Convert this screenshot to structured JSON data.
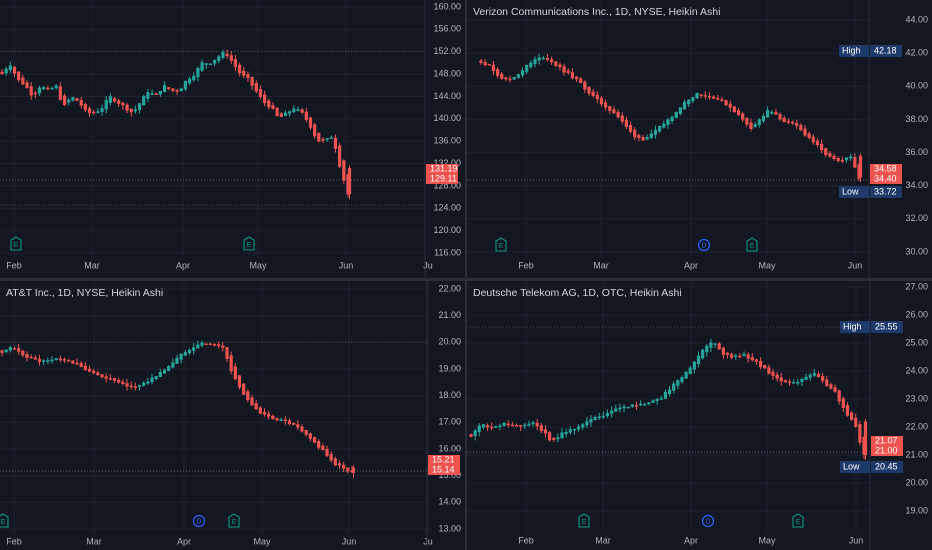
{
  "colors": {
    "background": "#131722",
    "grid": "#1e222d",
    "separator": "#2a2e39",
    "up": "#26a69a",
    "down": "#ef5350",
    "axis_text": "#b2b5be",
    "title_text": "#d1d4dc",
    "hl_box": "#1e3a6b",
    "event_earnings": "#089981",
    "event_dividend": "#2962ff"
  },
  "chart_data": [
    {
      "type": "candlestick",
      "title": "",
      "ylim": [
        116,
        160
      ],
      "yticks": [
        "160.00",
        "156.00",
        "152.00",
        "148.00",
        "144.00",
        "140.00",
        "136.00",
        "132.00",
        "128.00",
        "124.00",
        "120.00",
        "116.00"
      ],
      "xticks": [
        "Feb",
        "Mar",
        "Apr",
        "May",
        "Jun",
        "Ju"
      ],
      "price_labels": [
        "131.19",
        "129.11"
      ],
      "high": null,
      "low": null,
      "events": [
        {
          "kind": "E",
          "label": "E"
        },
        {
          "kind": "E",
          "label": "E"
        }
      ],
      "path": [
        148,
        150,
        147,
        146,
        144,
        146,
        145,
        146,
        142,
        144,
        143,
        141,
        141,
        142,
        144,
        143,
        142,
        141,
        143,
        145,
        144,
        146,
        145,
        145,
        147,
        148,
        150,
        150,
        151,
        152,
        150,
        148,
        147,
        145,
        143,
        142,
        140,
        141,
        142,
        141,
        139,
        136,
        136,
        137,
        131.2,
        126.5
      ]
    },
    {
      "type": "candlestick",
      "title": "Verizon Communications Inc., 1D, NYSE, Heikin Ashi",
      "ylim": [
        30,
        44
      ],
      "yticks": [
        "44.00",
        "42.00",
        "40.00",
        "38.00",
        "36.00",
        "34.00",
        "32.00",
        "30.00"
      ],
      "xticks": [
        "Feb",
        "Mar",
        "Apr",
        "May",
        "Jun"
      ],
      "price_labels": [
        "34.58",
        "34.40"
      ],
      "high": {
        "label": "High",
        "value": "42.18"
      },
      "low": {
        "label": "Low",
        "value": "33.72"
      },
      "events": [
        {
          "kind": "E",
          "label": "E"
        },
        {
          "kind": "D",
          "label": "D"
        },
        {
          "kind": "E",
          "label": "E"
        }
      ],
      "path": [
        41.5,
        41.2,
        40.6,
        40.3,
        40.7,
        41.2,
        41.6,
        41.8,
        41.4,
        41.0,
        40.6,
        40.2,
        39.6,
        39.1,
        38.7,
        38.3,
        37.6,
        37.0,
        36.8,
        37.1,
        37.6,
        38.1,
        38.7,
        39.2,
        39.6,
        39.4,
        39.3,
        39.0,
        38.6,
        38.0,
        37.5,
        38.0,
        38.6,
        38.1,
        37.8,
        37.6,
        37.1,
        36.6,
        36.0,
        35.6,
        35.4,
        35.8,
        34.5
      ]
    },
    {
      "type": "candlestick",
      "title": "AT&T Inc., 1D, NYSE, Heikin Ashi",
      "ylim": [
        13,
        22
      ],
      "yticks": [
        "22.00",
        "21.00",
        "20.00",
        "19.00",
        "18.00",
        "17.00",
        "16.00",
        "15.00",
        "14.00",
        "13.00"
      ],
      "xticks": [
        "Feb",
        "Mar",
        "Apr",
        "May",
        "Jun",
        "Ju"
      ],
      "price_labels": [
        "15.21",
        "15.14"
      ],
      "high": null,
      "low": null,
      "events": [
        {
          "kind": "E",
          "label": "E"
        },
        {
          "kind": "D",
          "label": "D"
        },
        {
          "kind": "E",
          "label": "E"
        }
      ],
      "path": [
        19.6,
        19.8,
        19.6,
        19.4,
        19.3,
        19.3,
        19.4,
        19.3,
        19.2,
        19.0,
        18.8,
        18.7,
        18.6,
        18.4,
        18.3,
        18.4,
        18.6,
        18.8,
        19.1,
        19.4,
        19.7,
        19.9,
        20.0,
        19.9,
        19.8,
        18.8,
        18.2,
        17.7,
        17.3,
        17.2,
        17.1,
        17.0,
        16.8,
        16.5,
        16.2,
        15.9,
        15.4,
        15.3,
        15.1
      ]
    },
    {
      "type": "candlestick",
      "title": "Deutsche Telekom AG, 1D, OTC, Heikin Ashi",
      "ylim": [
        18.5,
        27.5
      ],
      "yticks": [
        "27.00",
        "26.00",
        "25.00",
        "24.00",
        "23.00",
        "22.00",
        "21.00",
        "20.00",
        "19.00"
      ],
      "xticks": [
        "Feb",
        "Mar",
        "Apr",
        "May",
        "Jun"
      ],
      "price_labels": [
        "21.07",
        "21.00"
      ],
      "high": {
        "label": "High",
        "value": "25.55"
      },
      "low": {
        "label": "Low",
        "value": "20.45"
      },
      "events": [
        {
          "kind": "E",
          "label": "E"
        },
        {
          "kind": "D",
          "label": "D"
        },
        {
          "kind": "E",
          "label": "E"
        }
      ],
      "path": [
        21.7,
        22.1,
        22.0,
        22.1,
        22.1,
        22.0,
        22.2,
        21.9,
        21.5,
        21.8,
        21.9,
        22.1,
        22.3,
        22.4,
        22.6,
        22.7,
        22.8,
        22.8,
        22.9,
        23.1,
        23.5,
        23.8,
        24.2,
        24.8,
        25.1,
        24.6,
        24.5,
        24.6,
        24.4,
        24.1,
        23.8,
        23.6,
        23.6,
        23.7,
        23.9,
        23.6,
        23.3,
        22.6,
        22.2,
        21.0
      ]
    }
  ]
}
